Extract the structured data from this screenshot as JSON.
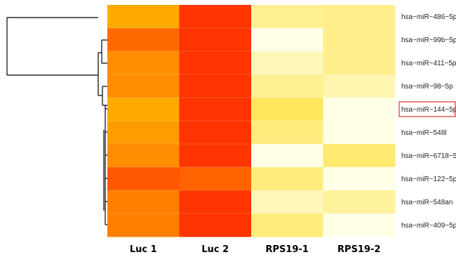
{
  "chart_data": {
    "type": "heatmap",
    "columns": [
      "Luc 1",
      "Luc 2",
      "RPS19-1",
      "RPS19-2"
    ],
    "rows": [
      "hsa−miR−486−5p",
      "hsa−miR−99b−5p",
      "hsa−miR−411−5p",
      "hsa−miR−98−5p",
      "hsa−miR−144−5p",
      "hsa−miR−548l",
      "hsa−miR−6718−5",
      "hsa−miR−122−5p",
      "hsa−miR−548an",
      "hsa−miR−409−5p"
    ],
    "values": [
      [
        0.38,
        0.05,
        0.82,
        0.8
      ],
      [
        0.2,
        0.05,
        1.0,
        0.8
      ],
      [
        0.3,
        0.05,
        0.9,
        0.8
      ],
      [
        0.3,
        0.05,
        0.82,
        0.88
      ],
      [
        0.38,
        0.05,
        0.7,
        1.0
      ],
      [
        0.34,
        0.05,
        0.77,
        1.0
      ],
      [
        0.3,
        0.05,
        1.0,
        0.74
      ],
      [
        0.15,
        0.18,
        0.77,
        1.0
      ],
      [
        0.26,
        0.05,
        0.9,
        0.84
      ],
      [
        0.26,
        0.05,
        0.77,
        1.0
      ]
    ],
    "color_scale": [
      "#ff2200",
      "#ffd500",
      "#ffffe6"
    ],
    "highlighted_row": "hsa−miR−144−5p",
    "highlight_color": "#e03030",
    "dendrogram": "rows"
  }
}
